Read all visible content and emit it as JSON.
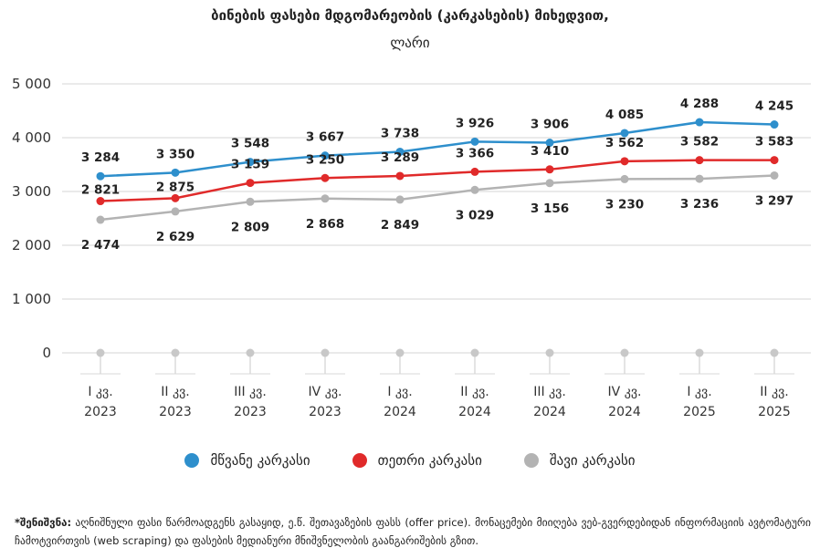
{
  "chart_data": {
    "type": "line",
    "title": "ბინების ფასები მდგომარეობის (კარკასების) მიხედვით,",
    "subtitle": "ლარი",
    "categories": [
      [
        "I კვ.",
        "2023"
      ],
      [
        "II კვ.",
        "2023"
      ],
      [
        "III კვ.",
        "2023"
      ],
      [
        "IV კვ.",
        "2023"
      ],
      [
        "I კვ.",
        "2024"
      ],
      [
        "II კვ.",
        "2024"
      ],
      [
        "III კვ.",
        "2024"
      ],
      [
        "IV კვ.",
        "2024"
      ],
      [
        "I კვ.",
        "2025"
      ],
      [
        "II კვ.",
        "2025"
      ]
    ],
    "yticks": [
      "5 000",
      "4 000",
      "3 000",
      "2 000",
      "1 000",
      "0"
    ],
    "ylim": [
      0,
      5000
    ],
    "grid": true,
    "legend_position": "bottom",
    "series": [
      {
        "name": "მწვანე კარკასი",
        "color": "#2e8fcc",
        "label_pos": "above",
        "values": [
          3284,
          3350,
          3548,
          3667,
          3738,
          3926,
          3906,
          4085,
          4288,
          4245
        ],
        "labels": [
          "3 284",
          "3 350",
          "3 548",
          "3 667",
          "3 738",
          "3 926",
          "3 906",
          "4 085",
          "4 288",
          "4 245"
        ]
      },
      {
        "name": "თეთრი კარკასი",
        "color": "#e02a2a",
        "label_pos": "mixed",
        "values": [
          2821,
          2875,
          3159,
          3250,
          3289,
          3366,
          3410,
          3562,
          3582,
          3583
        ],
        "labels": [
          "2 821",
          "2 875",
          "3 159",
          "3 250",
          "3 289",
          "3 366",
          "3 410",
          "3 562",
          "3 582",
          "3 583"
        ]
      },
      {
        "name": "შავი კარკასი",
        "color": "#b3b3b3",
        "label_pos": "below",
        "values": [
          2474,
          2629,
          2809,
          2868,
          2849,
          3029,
          3156,
          3230,
          3236,
          3297
        ],
        "labels": [
          "2 474",
          "2 629",
          "2 809",
          "2 868",
          "2 849",
          "3 029",
          "3 156",
          "3 230",
          "3 236",
          "3 297"
        ]
      }
    ],
    "baseline_markers_color": "#c8c8c8"
  },
  "legend": [
    {
      "label": "მწვანე კარკასი",
      "color": "#2e8fcc"
    },
    {
      "label": "თეთრი კარკასი",
      "color": "#e02a2a"
    },
    {
      "label": "შავი კარკასი",
      "color": "#b3b3b3"
    }
  ],
  "note": {
    "prefix": "*შენიშვნა:",
    "text": " აღნიშნული ფასი წარმოადგენს გასაყიდ, ე.წ. შეთავაზების ფასს (offer price). მონაცემები მიიღება ვებ-გვერდებიდან ინფორმაციის ავტომატური ჩამოტვირთვის (web scraping) და ფასების მედიანური მნიშვნელობის გაანგარიშების გზით."
  }
}
